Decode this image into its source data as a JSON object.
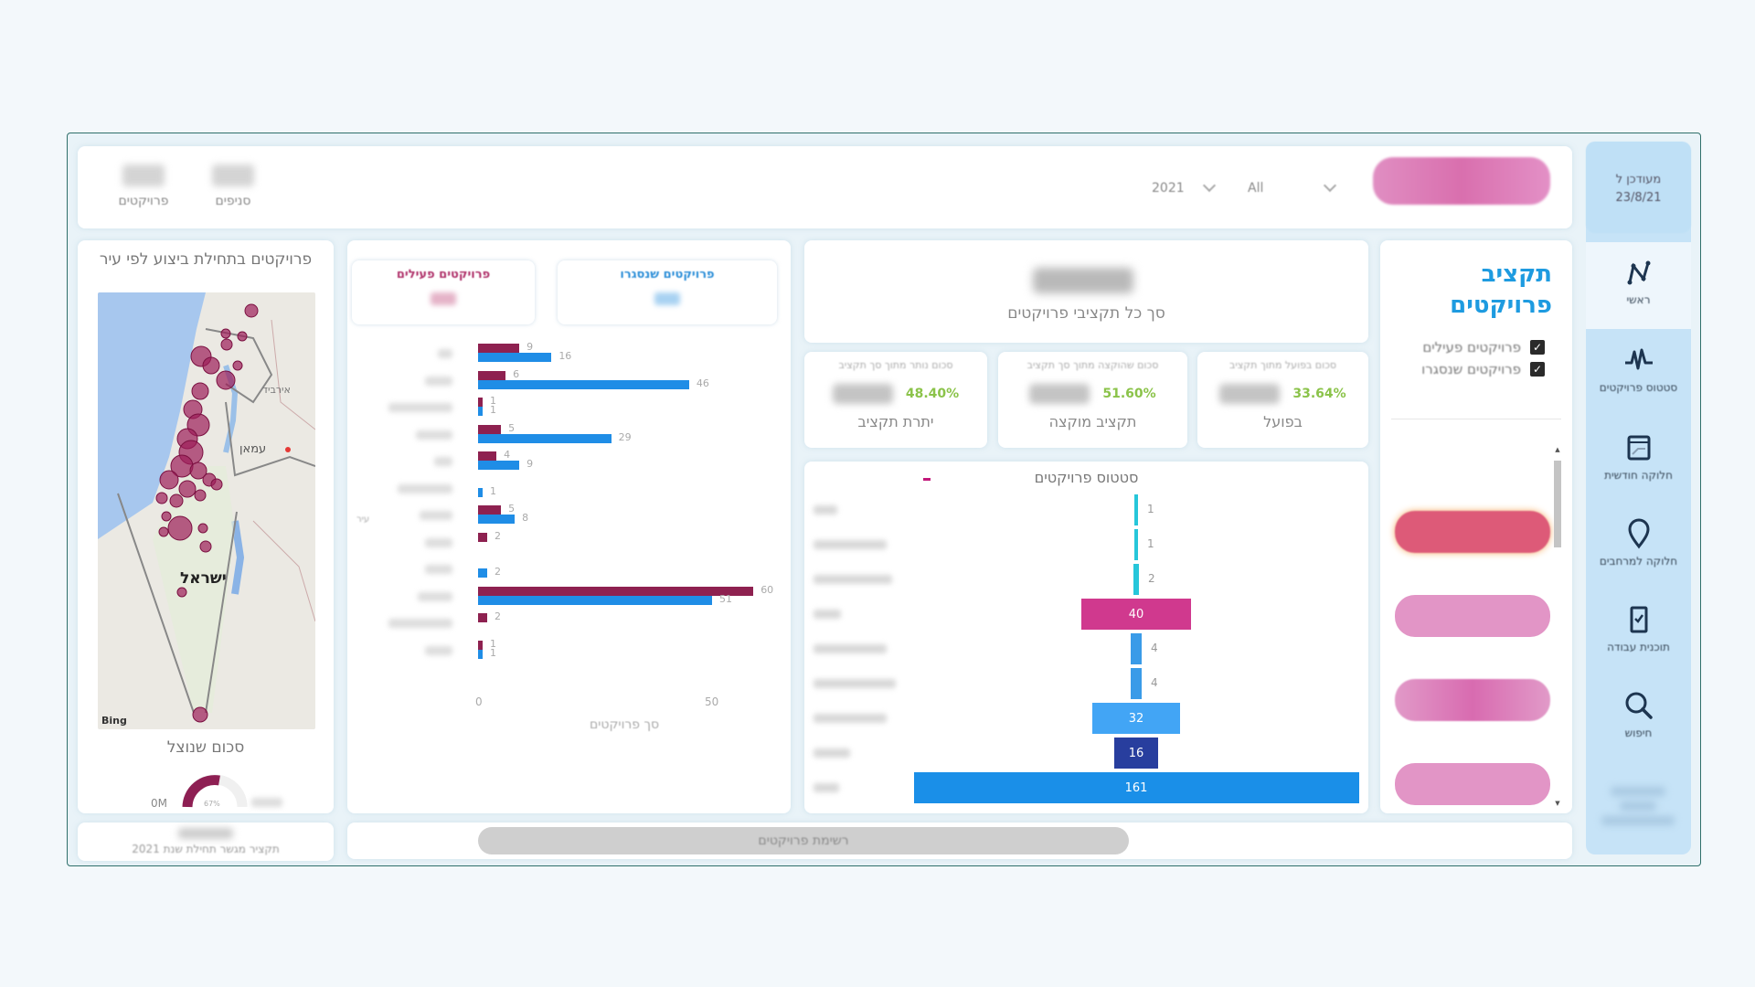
{
  "header": {
    "counts": [
      {
        "label": "פרויקטים",
        "value": "###"
      },
      {
        "label": "סניפים",
        "value": "###"
      }
    ],
    "year_filter": {
      "value": "2021"
    },
    "category_filter": {
      "value": "All"
    },
    "action_button": {
      "label": ""
    }
  },
  "sidebar": {
    "updated_label": "מעודכן ל",
    "updated_date": "23/8/21",
    "items": [
      {
        "label": "ראשי",
        "icon": "trend-icon"
      },
      {
        "label": "סטטוס פרויקטים",
        "icon": "pulse-icon"
      },
      {
        "label": "חלוקה חודשית",
        "icon": "calendar-icon"
      },
      {
        "label": "חלוקה למרחבים",
        "icon": "map-pin-icon"
      },
      {
        "label": "תוכנית עבודה",
        "icon": "checklist-icon"
      },
      {
        "label": "חיפוש",
        "icon": "search-icon"
      }
    ]
  },
  "map_panel": {
    "title": "פרויקטים בתחילת ביצוע לפי עיר",
    "map_labels": {
      "country": "ישראל",
      "amman": "עמאן",
      "irbid": "אירביד",
      "attribution": "Bing"
    },
    "gauge": {
      "title": "סכום שנוצל",
      "min_label": "0M",
      "value_label": "67%",
      "max_label": ""
    }
  },
  "bottom_card": {
    "label": "תקציר מגשר תחילת שנת 2021",
    "value": ""
  },
  "bar_panel": {
    "active_box": {
      "title": "פרויקטים פעילים",
      "value": "",
      "color": "#b0336b"
    },
    "closed_box": {
      "title": "פרויקטים שנסגרו",
      "value": "",
      "color": "#2d8fd8"
    },
    "xlabel": "סך פרויקטים",
    "ticks": [
      "0",
      "50"
    ],
    "y_axis_label": "עיר"
  },
  "kpis": {
    "total": {
      "label": "סך כל תקציבי פרויקטים",
      "value": ""
    },
    "surplus": {
      "caption": "סכום נותר מתוך סך תקציב",
      "label": "יתרת תקציב",
      "pct": "48.40%"
    },
    "allocated": {
      "caption": "סכום שהוקצה מתוך סך תקציב",
      "label": "תקציב מוקצה",
      "pct": "51.60%"
    },
    "actual": {
      "caption": "סכום בפועל מתוך תקציב",
      "label": "בפועל",
      "pct": "33.64%"
    }
  },
  "funnel": {
    "title": "סטטוס פרויקטים"
  },
  "right_panel": {
    "title_line1": "תקציב",
    "title_line2": "פרויקטים",
    "checkboxes": [
      {
        "label": "פרויקטים פעילים",
        "checked": true
      },
      {
        "label": "פרויקטים שנסגרו",
        "checked": true
      }
    ]
  },
  "list_button": {
    "label": "רשימת פרויקטים"
  },
  "chart_data": [
    {
      "type": "bar",
      "orientation": "horizontal",
      "title": "",
      "xlabel": "סך פרויקטים",
      "ylabel": "עיר",
      "xlim": [
        0,
        65
      ],
      "x_ticks": [
        0,
        50
      ],
      "categories": [
        "c1",
        "c2",
        "c3",
        "c4",
        "c5",
        "c6",
        "c7",
        "c8",
        "c9",
        "c10",
        "c11",
        "c12"
      ],
      "series": [
        {
          "name": "פרויקטים פעילים",
          "color": "#8e2150",
          "values": [
            9,
            6,
            1,
            5,
            4,
            0,
            5,
            2,
            0,
            60,
            2,
            1
          ]
        },
        {
          "name": "פרויקטים שנסגרו",
          "color": "#1f8de6",
          "values": [
            16,
            46,
            1,
            29,
            9,
            1,
            8,
            0,
            2,
            51,
            0,
            1
          ]
        }
      ]
    },
    {
      "type": "bar",
      "subtype": "funnel",
      "title": "סטטוס פרויקטים",
      "categories": [
        "s1",
        "s2",
        "s3",
        "s4",
        "s5",
        "s6",
        "s7",
        "s8",
        "s9"
      ],
      "values": [
        1,
        1,
        2,
        40,
        4,
        4,
        32,
        16,
        161
      ],
      "colors": [
        "#26c6da",
        "#26c6da",
        "#26c6da",
        "#d0398e",
        "#3a9be8",
        "#3a9be8",
        "#42a5f5",
        "#283e9e",
        "#1a8fe8"
      ]
    }
  ]
}
